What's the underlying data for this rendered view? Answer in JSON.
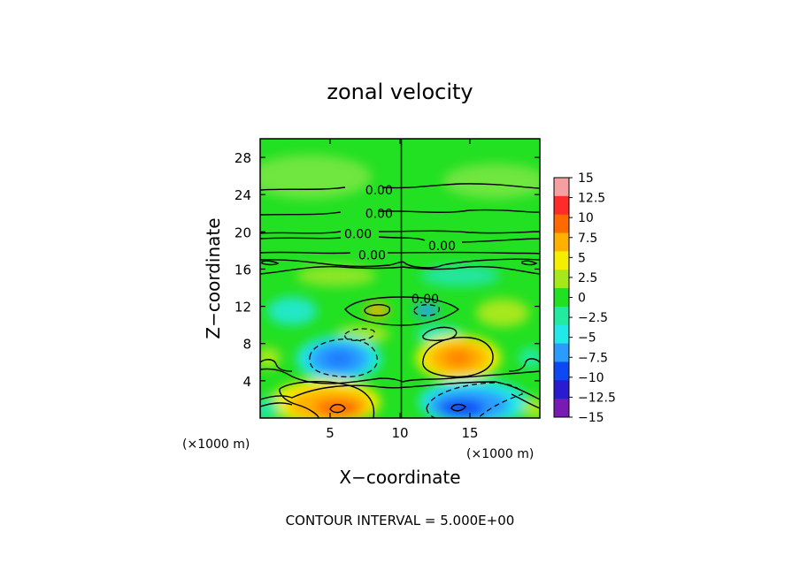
{
  "chart_data": {
    "type": "heatmap",
    "title": "zonal velocity",
    "xlabel": "X−coordinate",
    "ylabel": "Z−coordinate",
    "x_unit_label": "(×1000 m)",
    "y_unit_label": "(×1000 m)",
    "xlim": [
      0,
      20
    ],
    "ylim": [
      0,
      30
    ],
    "x_ticks": [
      5,
      10,
      15
    ],
    "y_ticks": [
      4,
      8,
      12,
      16,
      20,
      24,
      28
    ],
    "grid": false,
    "footer": "CONTOUR INTERVAL = 5.000E+00",
    "contour_interval": 5.0,
    "contour_labels": [
      {
        "text": "0.00",
        "x": 8.5,
        "z": 24.5
      },
      {
        "text": "0.00",
        "x": 8.5,
        "z": 22.0
      },
      {
        "text": "0.00",
        "x": 7.0,
        "z": 19.8
      },
      {
        "text": "0.00",
        "x": 13.0,
        "z": 18.5
      },
      {
        "text": "0.00",
        "x": 8.0,
        "z": 17.5
      },
      {
        "text": "0.00",
        "x": 11.8,
        "z": 12.8
      }
    ],
    "colorbar": {
      "labels": [
        "15",
        "12.5",
        "10",
        "7.5",
        "5",
        "2.5",
        "0",
        "−2.5",
        "−5",
        "−7.5",
        "−10",
        "−12.5",
        "−15"
      ],
      "levels": [
        15,
        12.5,
        10,
        7.5,
        5,
        2.5,
        0,
        -2.5,
        -5,
        -7.5,
        -10,
        -12.5,
        -15
      ],
      "colors": [
        "#f4a0a0",
        "#ff2a2a",
        "#ff6a00",
        "#ffb000",
        "#f4ee00",
        "#a6e81c",
        "#22e022",
        "#22eaa0",
        "#22e8e8",
        "#2a9cff",
        "#0c48f4",
        "#2a1ad0",
        "#7a1ab4"
      ]
    },
    "features": [
      {
        "kind": "positive_max",
        "x": 6,
        "z": 2,
        "value": 10
      },
      {
        "kind": "negative_min",
        "x": 14,
        "z": 1.5,
        "value": -10
      },
      {
        "kind": "negative_min",
        "x": 7.2,
        "z": 6.5,
        "value": -7.5
      },
      {
        "kind": "positive_max",
        "x": 14.5,
        "z": 6.5,
        "value": 7.5
      },
      {
        "kind": "positive_max",
        "x": 8.5,
        "z": 11.8,
        "value": 5
      },
      {
        "kind": "negative_min",
        "x": 11.8,
        "z": 11.8,
        "value": -5
      }
    ]
  }
}
